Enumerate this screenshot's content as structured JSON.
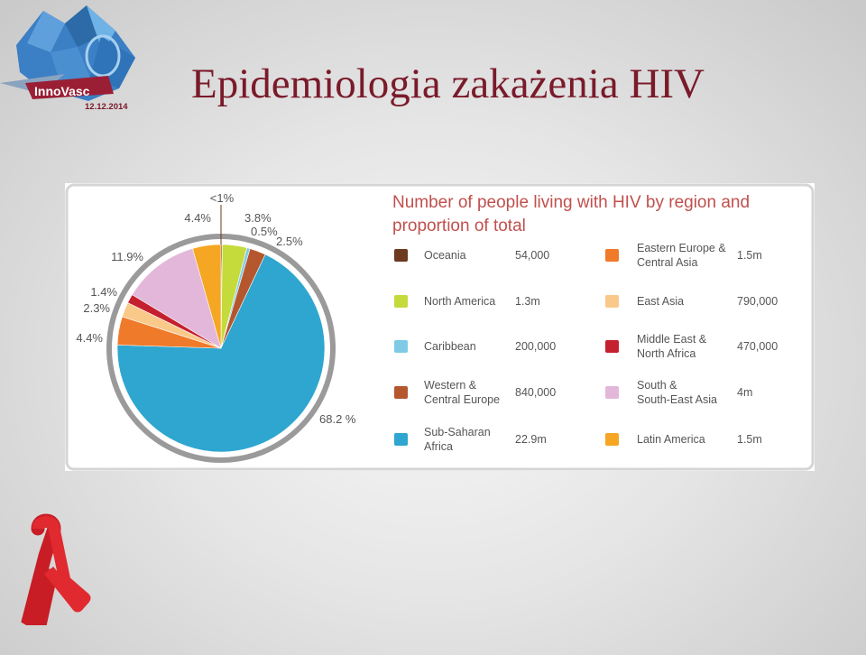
{
  "slide": {
    "title": "Epidemiologia zakażenia HIV",
    "logo": {
      "name": "InnoVasc",
      "date": "12.12.2014"
    },
    "ribbon_icon": "red-aids-ribbon"
  },
  "chart_data": {
    "type": "pie",
    "title": "Number of people living with HIV by region and proportion of total",
    "start_angle_deg": 0,
    "direction": "clockwise",
    "slices": [
      {
        "label": "Oceania",
        "value": "54,000",
        "percent": 0.2,
        "percent_label": "<1%",
        "color": "#6b3a1f"
      },
      {
        "label": "North America",
        "value": "1.3m",
        "percent": 3.8,
        "percent_label": "3.8%",
        "color": "#c5da3b"
      },
      {
        "label": "Caribbean",
        "value": "200,000",
        "percent": 0.5,
        "percent_label": "0.5%",
        "color": "#7fcbe6"
      },
      {
        "label": "Western & Central Europe",
        "value": "840,000",
        "percent": 2.5,
        "percent_label": "2.5%",
        "color": "#b5572e"
      },
      {
        "label": "Sub-Saharan Africa",
        "value": "22.9m",
        "percent": 68.2,
        "percent_label": "68.2 %",
        "color": "#2ea6cf"
      },
      {
        "label": "Eastern Europe & Central Asia",
        "value": "1.5m",
        "percent": 4.4,
        "percent_label": "4.4%",
        "color": "#ef7a2a"
      },
      {
        "label": "East Asia",
        "value": "790,000",
        "percent": 2.3,
        "percent_label": "2.3%",
        "color": "#f9c98a"
      },
      {
        "label": "Middle East & North Africa",
        "value": "470,000",
        "percent": 1.4,
        "percent_label": "1.4%",
        "color": "#c4202f"
      },
      {
        "label": "South & South-East Asia",
        "value": "4m",
        "percent": 11.9,
        "percent_label": "11.9%",
        "color": "#e3b7d9"
      },
      {
        "label": "Latin America",
        "value": "1.5m",
        "percent": 4.4,
        "percent_label": "4.4%",
        "color": "#f5a623"
      }
    ]
  }
}
